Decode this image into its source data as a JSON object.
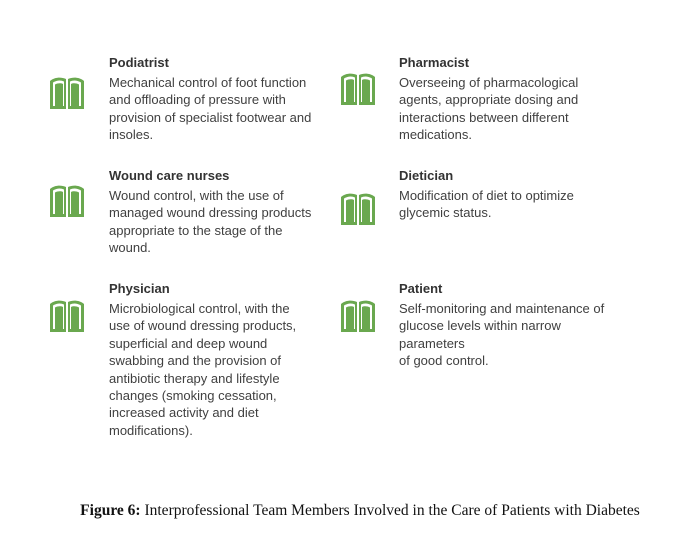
{
  "icon_color": "#6aa84f",
  "icon_name": "open-book-icon",
  "members": [
    {
      "title": "Podiatrist",
      "description": [
        "Mechanical control of foot function",
        "and offloading of pressure with",
        "provision of specialist footwear and",
        "insoles."
      ]
    },
    {
      "title": "Pharmacist",
      "description": [
        "Overseeing of pharmacological",
        "agents, appropriate dosing and",
        "interactions between different",
        "medications."
      ]
    },
    {
      "title": "Wound care nurses",
      "description": [
        "Wound control, with the use of",
        "managed wound dressing products",
        "appropriate to the stage of the",
        "wound."
      ]
    },
    {
      "title": "Dietician",
      "description": [
        "Modification of diet to optimize",
        "glycemic status."
      ]
    },
    {
      "title": "Physician",
      "description": [
        "Microbiological control, with the",
        "use of wound dressing products,",
        "superficial and deep wound",
        "swabbing and the provision of",
        "antibiotic therapy and lifestyle",
        "changes (smoking cessation,",
        "increased activity and diet",
        "modifications)."
      ]
    },
    {
      "title": "Patient",
      "description": [
        "Self-monitoring and maintenance of",
        "glucose levels within narrow",
        "parameters",
        "of good control."
      ]
    }
  ],
  "caption": {
    "label": "Figure 6:",
    "text": "Interprofessional Team Members Involved in the Care of Patients with Diabetes"
  }
}
